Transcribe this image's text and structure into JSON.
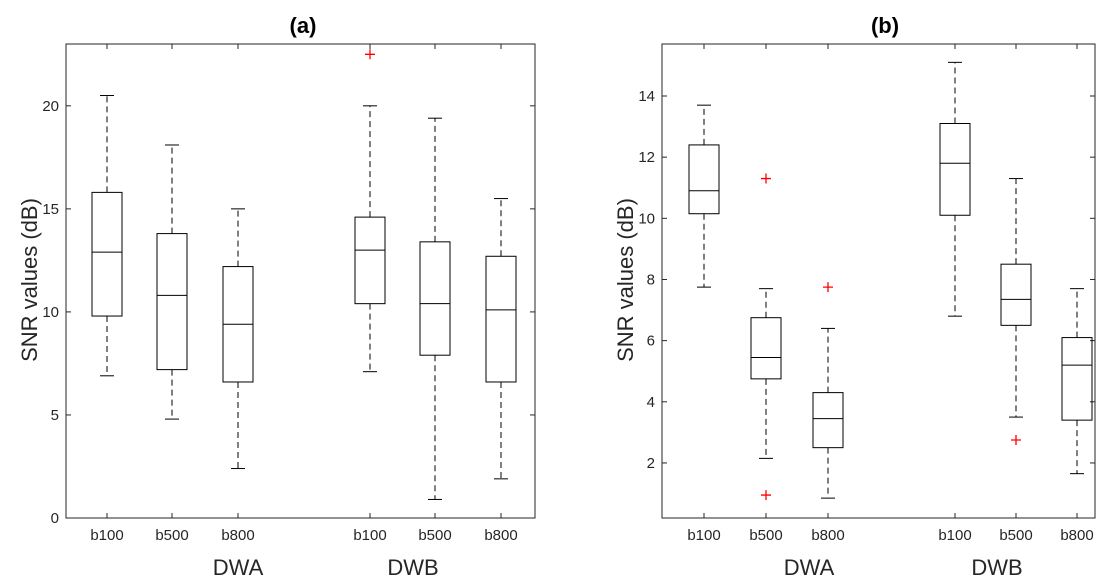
{
  "chart_data": [
    {
      "type": "box",
      "title": "(a)",
      "ylabel": "SNR values (dB)",
      "ylim": [
        0,
        23
      ],
      "yticks": [
        0,
        5,
        10,
        15,
        20
      ],
      "groups": [
        "DWA",
        "DWB"
      ],
      "categories": [
        "b100",
        "b500",
        "b800",
        "b100",
        "b500",
        "b800"
      ],
      "group_of": [
        0,
        0,
        0,
        1,
        1,
        1
      ],
      "boxes": [
        {
          "whisker_low": 6.9,
          "q1": 9.8,
          "median": 12.9,
          "q3": 15.8,
          "whisker_high": 20.5,
          "outliers": []
        },
        {
          "whisker_low": 4.8,
          "q1": 7.2,
          "median": 10.8,
          "q3": 13.8,
          "whisker_high": 18.1,
          "outliers": []
        },
        {
          "whisker_low": 2.4,
          "q1": 6.6,
          "median": 9.4,
          "q3": 12.2,
          "whisker_high": 15.0,
          "outliers": []
        },
        {
          "whisker_low": 7.1,
          "q1": 10.4,
          "median": 13.0,
          "q3": 14.6,
          "whisker_high": 20.0,
          "outliers": [
            22.5
          ]
        },
        {
          "whisker_low": 0.9,
          "q1": 7.9,
          "median": 10.4,
          "q3": 13.4,
          "whisker_high": 19.4,
          "outliers": []
        },
        {
          "whisker_low": 1.9,
          "q1": 6.6,
          "median": 10.1,
          "q3": 12.7,
          "whisker_high": 15.5,
          "outliers": []
        }
      ],
      "grid": false
    },
    {
      "type": "box",
      "title": "(b)",
      "ylabel": "SNR values (dB)",
      "ylim": [
        0.2,
        15.7
      ],
      "yticks": [
        2,
        4,
        6,
        8,
        10,
        12,
        14
      ],
      "groups": [
        "DWA",
        "DWB"
      ],
      "categories": [
        "b100",
        "b500",
        "b800",
        "b100",
        "b500",
        "b800"
      ],
      "group_of": [
        0,
        0,
        0,
        1,
        1,
        1
      ],
      "boxes": [
        {
          "whisker_low": 7.75,
          "q1": 10.15,
          "median": 10.9,
          "q3": 12.4,
          "whisker_high": 13.7,
          "outliers": []
        },
        {
          "whisker_low": 2.15,
          "q1": 4.75,
          "median": 5.45,
          "q3": 6.75,
          "whisker_high": 7.7,
          "outliers": [
            11.3,
            0.95
          ]
        },
        {
          "whisker_low": 0.85,
          "q1": 2.5,
          "median": 3.45,
          "q3": 4.3,
          "whisker_high": 6.4,
          "outliers": [
            7.75
          ]
        },
        {
          "whisker_low": 6.8,
          "q1": 10.1,
          "median": 11.8,
          "q3": 13.1,
          "whisker_high": 15.1,
          "outliers": []
        },
        {
          "whisker_low": 3.5,
          "q1": 6.5,
          "median": 7.35,
          "q3": 8.5,
          "whisker_high": 11.3,
          "outliers": [
            2.75
          ]
        },
        {
          "whisker_low": 1.65,
          "q1": 3.4,
          "median": 5.2,
          "q3": 6.1,
          "whisker_high": 7.7,
          "outliers": []
        }
      ],
      "grid": false
    }
  ],
  "colors": {
    "box": "#000000",
    "outlier": "#ff0000",
    "axis": "#262626"
  }
}
